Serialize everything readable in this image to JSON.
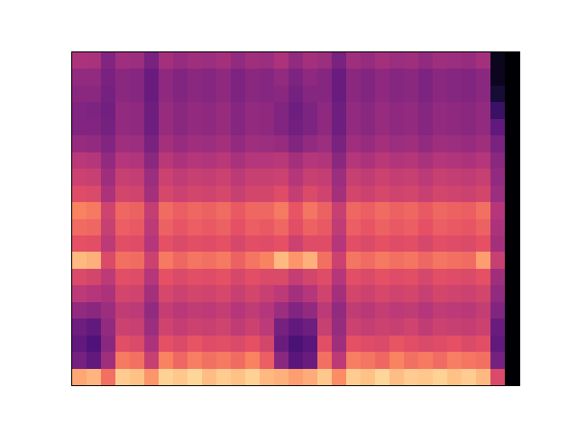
{
  "chart_data": {
    "type": "heatmap",
    "color": "magma",
    "tick_labels": false,
    "grid": false,
    "zlim": [
      0,
      100
    ],
    "cells": [
      [
        82,
        85,
        70,
        90,
        88,
        78,
        91,
        89,
        92,
        87,
        90,
        88,
        91,
        86,
        84,
        80,
        83,
        89,
        76,
        90,
        88,
        92,
        87,
        90,
        89,
        91,
        88,
        90,
        86,
        60,
        0
      ],
      [
        35,
        30,
        45,
        72,
        70,
        55,
        74,
        68,
        73,
        70,
        72,
        69,
        74,
        66,
        40,
        28,
        32,
        70,
        52,
        73,
        71,
        68,
        74,
        70,
        72,
        69,
        73,
        71,
        70,
        35,
        0
      ],
      [
        30,
        25,
        40,
        62,
        60,
        48,
        63,
        60,
        64,
        61,
        62,
        60,
        63,
        58,
        32,
        24,
        28,
        62,
        45,
        63,
        61,
        60,
        64,
        62,
        60,
        61,
        63,
        60,
        62,
        30,
        0
      ],
      [
        33,
        30,
        42,
        56,
        55,
        44,
        57,
        54,
        56,
        55,
        57,
        53,
        56,
        52,
        35,
        30,
        33,
        55,
        43,
        56,
        54,
        56,
        55,
        57,
        53,
        56,
        55,
        54,
        56,
        32,
        0
      ],
      [
        42,
        40,
        44,
        53,
        52,
        42,
        54,
        51,
        53,
        52,
        54,
        50,
        53,
        50,
        44,
        38,
        42,
        52,
        42,
        53,
        51,
        54,
        52,
        53,
        50,
        53,
        52,
        51,
        54,
        38,
        0
      ],
      [
        52,
        50,
        48,
        58,
        57,
        46,
        59,
        56,
        58,
        57,
        59,
        55,
        58,
        55,
        52,
        46,
        50,
        57,
        46,
        58,
        56,
        59,
        57,
        58,
        55,
        58,
        57,
        56,
        58,
        42,
        0
      ],
      [
        60,
        58,
        52,
        62,
        61,
        50,
        63,
        60,
        62,
        61,
        63,
        59,
        62,
        60,
        60,
        54,
        58,
        61,
        50,
        62,
        60,
        63,
        61,
        62,
        59,
        62,
        61,
        60,
        63,
        45,
        0
      ],
      [
        86,
        84,
        60,
        70,
        69,
        56,
        72,
        68,
        71,
        70,
        72,
        67,
        71,
        74,
        86,
        78,
        84,
        70,
        56,
        71,
        69,
        72,
        70,
        71,
        68,
        71,
        70,
        69,
        80,
        55,
        0
      ],
      [
        63,
        62,
        52,
        62,
        61,
        50,
        63,
        60,
        62,
        61,
        63,
        59,
        62,
        61,
        63,
        56,
        61,
        61,
        50,
        62,
        60,
        63,
        61,
        62,
        59,
        62,
        61,
        60,
        63,
        46,
        0
      ],
      [
        69,
        68,
        55,
        66,
        65,
        52,
        67,
        64,
        66,
        65,
        67,
        63,
        66,
        65,
        68,
        62,
        67,
        65,
        53,
        66,
        64,
        67,
        65,
        66,
        63,
        66,
        65,
        64,
        67,
        48,
        0
      ],
      [
        74,
        72,
        57,
        68,
        67,
        54,
        69,
        66,
        68,
        67,
        69,
        65,
        68,
        68,
        72,
        64,
        71,
        67,
        55,
        68,
        66,
        69,
        67,
        68,
        65,
        68,
        67,
        66,
        70,
        50,
        0
      ],
      [
        61,
        60,
        48,
        58,
        57,
        46,
        59,
        56,
        58,
        57,
        59,
        55,
        58,
        58,
        61,
        54,
        60,
        57,
        46,
        58,
        56,
        59,
        57,
        58,
        55,
        58,
        57,
        56,
        58,
        44,
        0
      ],
      [
        56,
        55,
        45,
        55,
        54,
        44,
        56,
        53,
        55,
        54,
        56,
        52,
        55,
        55,
        56,
        50,
        55,
        54,
        44,
        55,
        53,
        56,
        54,
        55,
        52,
        55,
        54,
        53,
        55,
        42,
        0
      ],
      [
        51,
        50,
        42,
        50,
        49,
        40,
        51,
        48,
        50,
        49,
        51,
        47,
        50,
        50,
        51,
        46,
        50,
        49,
        40,
        50,
        48,
        51,
        49,
        50,
        47,
        50,
        49,
        48,
        50,
        40,
        0
      ],
      [
        43,
        42,
        38,
        45,
        44,
        36,
        46,
        43,
        45,
        44,
        46,
        42,
        45,
        44,
        43,
        38,
        42,
        44,
        36,
        45,
        43,
        46,
        44,
        45,
        42,
        45,
        44,
        43,
        45,
        36,
        0
      ],
      [
        38,
        38,
        35,
        42,
        41,
        33,
        43,
        40,
        42,
        41,
        43,
        39,
        42,
        41,
        38,
        34,
        37,
        41,
        33,
        42,
        40,
        43,
        41,
        42,
        39,
        42,
        41,
        40,
        42,
        30,
        0
      ],
      [
        38,
        37,
        34,
        42,
        41,
        33,
        43,
        40,
        42,
        41,
        43,
        39,
        42,
        41,
        38,
        33,
        37,
        41,
        33,
        42,
        40,
        43,
        41,
        42,
        39,
        42,
        41,
        40,
        42,
        20,
        0
      ],
      [
        40,
        40,
        35,
        40,
        39,
        32,
        41,
        38,
        40,
        39,
        41,
        37,
        40,
        39,
        40,
        35,
        39,
        39,
        32,
        40,
        38,
        41,
        39,
        40,
        37,
        40,
        39,
        38,
        40,
        10,
        0
      ],
      [
        42,
        42,
        36,
        40,
        39,
        32,
        41,
        38,
        40,
        39,
        41,
        37,
        40,
        39,
        42,
        37,
        41,
        39,
        32,
        40,
        38,
        41,
        39,
        40,
        37,
        40,
        39,
        38,
        40,
        5,
        0
      ],
      [
        48,
        47,
        38,
        45,
        44,
        36,
        46,
        43,
        45,
        44,
        46,
        42,
        45,
        44,
        48,
        42,
        46,
        44,
        36,
        45,
        43,
        46,
        44,
        45,
        42,
        45,
        44,
        43,
        46,
        5,
        0
      ]
    ]
  }
}
